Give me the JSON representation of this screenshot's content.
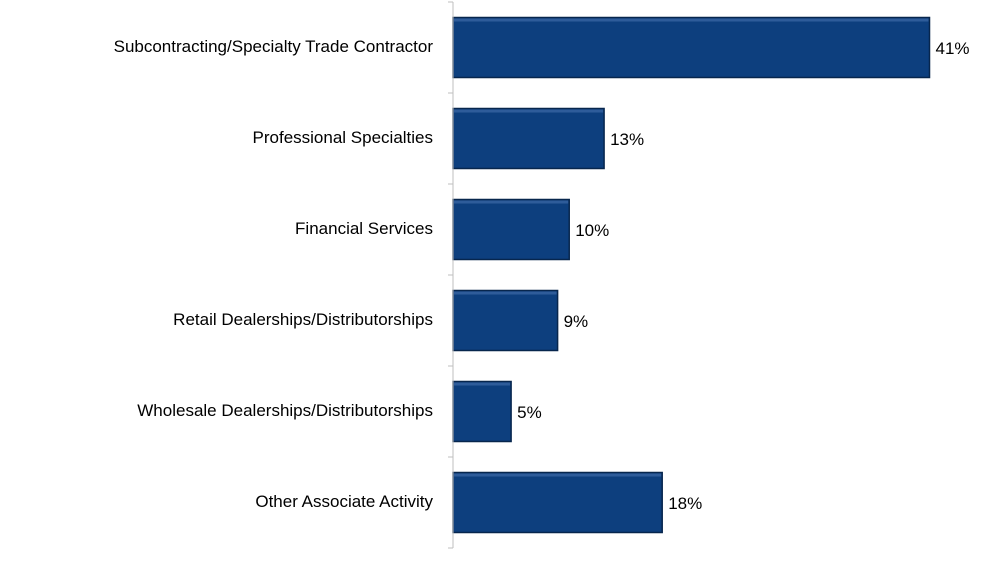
{
  "chart_data": {
    "type": "bar",
    "orientation": "horizontal",
    "categories": [
      "Subcontracting/Specialty Trade Contractor",
      "Professional Specialties",
      "Financial Services",
      "Retail Dealerships/Distributorships",
      "Wholesale Dealerships/Distributorships",
      "Other Associate Activity"
    ],
    "values": [
      41,
      13,
      10,
      9,
      5,
      18
    ],
    "value_labels": [
      "41%",
      "13%",
      "10%",
      "9%",
      "5%",
      "18%"
    ],
    "color": "#0d3f7e",
    "xlim": [
      0,
      45
    ]
  }
}
